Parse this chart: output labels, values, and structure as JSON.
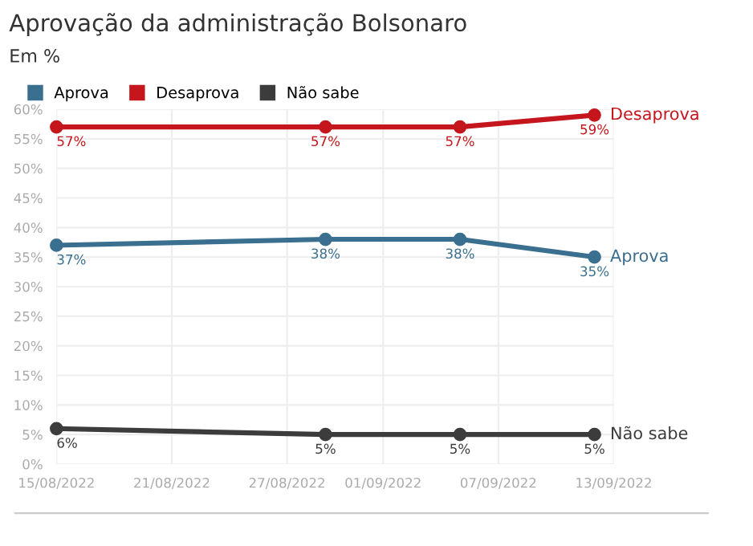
{
  "chart_data": {
    "type": "line",
    "title": "Aprovação da administração Bolsonaro",
    "subtitle": "Em %",
    "x": [
      "2022-08-15",
      "2022-08-29",
      "2022-09-05",
      "2022-09-12"
    ],
    "series": [
      {
        "name": "Aprova",
        "color": "#3a6f8f",
        "values": [
          37,
          38,
          38,
          35
        ],
        "value_labels": [
          "37%",
          "38%",
          "38%",
          "35%"
        ]
      },
      {
        "name": "Desaprova",
        "color": "#c4161c",
        "values": [
          57,
          57,
          57,
          59
        ],
        "value_labels": [
          "57%",
          "57%",
          "57%",
          "59%"
        ]
      },
      {
        "name": "Não sabe",
        "color": "#3c3c3c",
        "values": [
          6,
          5,
          5,
          5
        ],
        "value_labels": [
          "6%",
          "5%",
          "5%",
          "5%"
        ]
      }
    ],
    "xlim": [
      "2022-08-15",
      "2022-09-13"
    ],
    "xticks": [
      {
        "value": "2022-08-15",
        "label": "15/08/2022"
      },
      {
        "value": "2022-08-21",
        "label": "21/08/2022"
      },
      {
        "value": "2022-08-27",
        "label": "27/08/2022"
      },
      {
        "value": "2022-09-01",
        "label": "01/09/2022"
      },
      {
        "value": "2022-09-07",
        "label": "07/09/2022"
      },
      {
        "value": "2022-09-13",
        "label": "13/09/2022"
      }
    ],
    "ylim": [
      0,
      60
    ],
    "yticks": [
      {
        "value": 0,
        "label": "0%"
      },
      {
        "value": 5,
        "label": "5%"
      },
      {
        "value": 10,
        "label": "10%"
      },
      {
        "value": 15,
        "label": "15%"
      },
      {
        "value": 20,
        "label": "20%"
      },
      {
        "value": 25,
        "label": "25%"
      },
      {
        "value": 30,
        "label": "30%"
      },
      {
        "value": 35,
        "label": "35%"
      },
      {
        "value": 40,
        "label": "40%"
      },
      {
        "value": 45,
        "label": "45%"
      },
      {
        "value": 50,
        "label": "50%"
      },
      {
        "value": 55,
        "label": "55%"
      },
      {
        "value": 60,
        "label": "60%"
      }
    ],
    "grid": true,
    "legend": "top left",
    "marker": "circle",
    "line_style": "solid"
  }
}
